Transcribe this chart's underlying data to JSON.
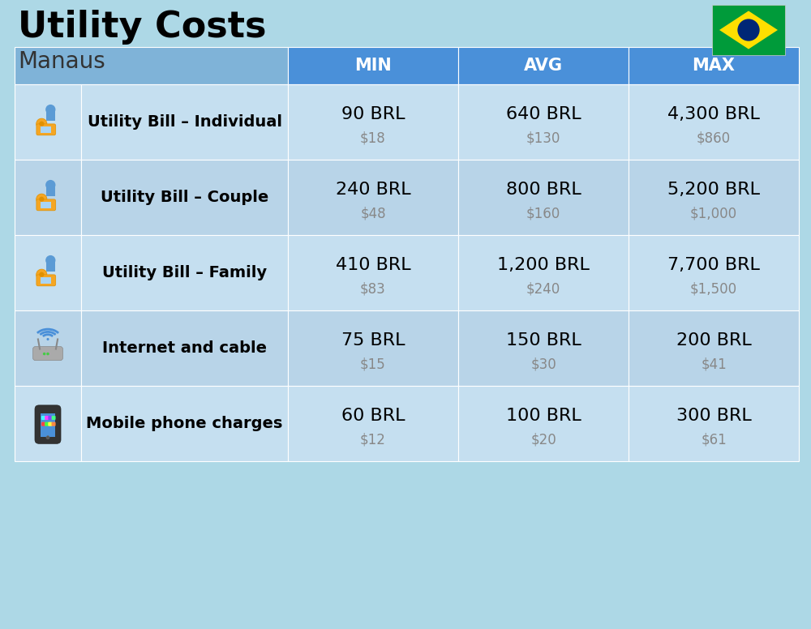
{
  "title": "Utility Costs",
  "subtitle": "Manaus",
  "background_color": "#add8e6",
  "header_bg_color": "#4a90d9",
  "header_icon_bg": "#7fb3d8",
  "header_text_color": "#ffffff",
  "row_bg_color_1": "#c5dff0",
  "row_bg_color_2": "#b8d4e8",
  "col_header_labels": [
    "MIN",
    "AVG",
    "MAX"
  ],
  "rows": [
    {
      "label": "Utility Bill – Individual",
      "icon_type": "utility",
      "min_brl": "90 BRL",
      "min_usd": "$18",
      "avg_brl": "640 BRL",
      "avg_usd": "$130",
      "max_brl": "4,300 BRL",
      "max_usd": "$860"
    },
    {
      "label": "Utility Bill – Couple",
      "icon_type": "utility",
      "min_brl": "240 BRL",
      "min_usd": "$48",
      "avg_brl": "800 BRL",
      "avg_usd": "$160",
      "max_brl": "5,200 BRL",
      "max_usd": "$1,000"
    },
    {
      "label": "Utility Bill – Family",
      "icon_type": "utility",
      "min_brl": "410 BRL",
      "min_usd": "$83",
      "avg_brl": "1,200 BRL",
      "avg_usd": "$240",
      "max_brl": "7,700 BRL",
      "max_usd": "$1,500"
    },
    {
      "label": "Internet and cable",
      "icon_type": "internet",
      "min_brl": "75 BRL",
      "min_usd": "$15",
      "avg_brl": "150 BRL",
      "avg_usd": "$30",
      "max_brl": "200 BRL",
      "max_usd": "$41"
    },
    {
      "label": "Mobile phone charges",
      "icon_type": "mobile",
      "min_brl": "60 BRL",
      "min_usd": "$12",
      "avg_brl": "100 BRL",
      "avg_usd": "$20",
      "max_brl": "300 BRL",
      "max_usd": "$61"
    }
  ],
  "title_fontsize": 32,
  "subtitle_fontsize": 20,
  "header_fontsize": 15,
  "label_fontsize": 14,
  "value_fontsize": 16,
  "usd_fontsize": 12,
  "usd_color": "#888888",
  "fig_width": 10.0,
  "fig_height": 7.76
}
